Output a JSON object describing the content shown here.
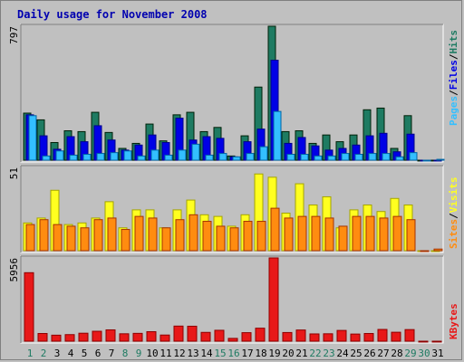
{
  "title": "Daily usage for November 2008",
  "colors": {
    "background": "#c0c0c0",
    "title": "#0000b0",
    "hits": "#1e7b62",
    "files": "#0000e6",
    "pages": "#33bfff",
    "visits": "#ffff20",
    "sites": "#ff8c10",
    "kbytes": "#e81818",
    "weekend_label": "#1e7b62",
    "weekday_label": "#000000"
  },
  "chart_data": [
    {
      "type": "bar",
      "name": "top-panel",
      "ymax_label": "797",
      "ymax": 797,
      "legend": [
        "Pages",
        "/",
        "Files",
        "/",
        "Hits"
      ],
      "categories": [
        "1",
        "2",
        "3",
        "4",
        "5",
        "6",
        "7",
        "8",
        "9",
        "10",
        "11",
        "12",
        "13",
        "14",
        "15",
        "16",
        "17",
        "18",
        "19",
        "20",
        "21",
        "22",
        "23",
        "24",
        "25",
        "26",
        "27",
        "28",
        "29",
        "30",
        "31"
      ],
      "weekend": [
        1,
        2,
        8,
        9,
        15,
        16,
        22,
        23,
        29,
        30
      ],
      "series": [
        {
          "name": "Hits",
          "values": [
            280,
            240,
            105,
            175,
            170,
            285,
            165,
            70,
            100,
            215,
            115,
            270,
            285,
            170,
            195,
            25,
            145,
            435,
            797,
            170,
            175,
            100,
            150,
            110,
            150,
            300,
            310,
            70,
            265,
            0,
            0
          ]
        },
        {
          "name": "Files",
          "values": [
            270,
            145,
            65,
            140,
            110,
            205,
            120,
            60,
            90,
            150,
            105,
            250,
            120,
            140,
            130,
            20,
            110,
            185,
            595,
            100,
            135,
            85,
            60,
            70,
            90,
            145,
            160,
            50,
            155,
            0,
            0
          ]
        },
        {
          "name": "Pages",
          "values": [
            265,
            25,
            55,
            30,
            35,
            40,
            45,
            55,
            25,
            60,
            30,
            60,
            95,
            30,
            40,
            20,
            40,
            80,
            290,
            35,
            35,
            25,
            25,
            40,
            35,
            40,
            40,
            20,
            45,
            0,
            5
          ]
        }
      ]
    },
    {
      "type": "bar",
      "name": "middle-panel",
      "ymax_label": "51",
      "ymax": 51,
      "legend": [
        "Sites",
        "/",
        "Visits"
      ],
      "categories": [
        "1",
        "2",
        "3",
        "4",
        "5",
        "6",
        "7",
        "8",
        "9",
        "10",
        "11",
        "12",
        "13",
        "14",
        "15",
        "16",
        "17",
        "18",
        "19",
        "20",
        "21",
        "22",
        "23",
        "24",
        "25",
        "26",
        "27",
        "28",
        "29",
        "30",
        "31"
      ],
      "series": [
        {
          "name": "Visits",
          "values": [
            17,
            20,
            37,
            16,
            17,
            20,
            30,
            14,
            25,
            25,
            14,
            25,
            31,
            22,
            21,
            15,
            22,
            47,
            45,
            23,
            41,
            28,
            33,
            14,
            25,
            28,
            24,
            32,
            28,
            0,
            0
          ]
        },
        {
          "name": "Sites",
          "values": [
            16,
            19,
            16,
            15,
            14,
            19,
            20,
            13,
            21,
            20,
            14,
            19,
            22,
            18,
            15,
            14,
            18,
            18,
            26,
            20,
            21,
            21,
            20,
            15,
            21,
            21,
            20,
            21,
            19,
            0,
            1
          ]
        }
      ]
    },
    {
      "type": "bar",
      "name": "bottom-panel",
      "ymax_label": "5956",
      "ymax": 5956,
      "legend": [
        "KBytes"
      ],
      "categories": [
        "1",
        "2",
        "3",
        "4",
        "5",
        "6",
        "7",
        "8",
        "9",
        "10",
        "11",
        "12",
        "13",
        "14",
        "15",
        "16",
        "17",
        "18",
        "19",
        "20",
        "21",
        "22",
        "23",
        "24",
        "25",
        "26",
        "27",
        "28",
        "29",
        "30",
        "31"
      ],
      "series": [
        {
          "name": "KBytes",
          "values": [
            4900,
            550,
            430,
            470,
            570,
            710,
            810,
            530,
            560,
            680,
            440,
            1080,
            1070,
            630,
            780,
            200,
            610,
            930,
            5956,
            620,
            800,
            520,
            530,
            770,
            510,
            550,
            840,
            640,
            830,
            0,
            0
          ]
        }
      ]
    }
  ]
}
